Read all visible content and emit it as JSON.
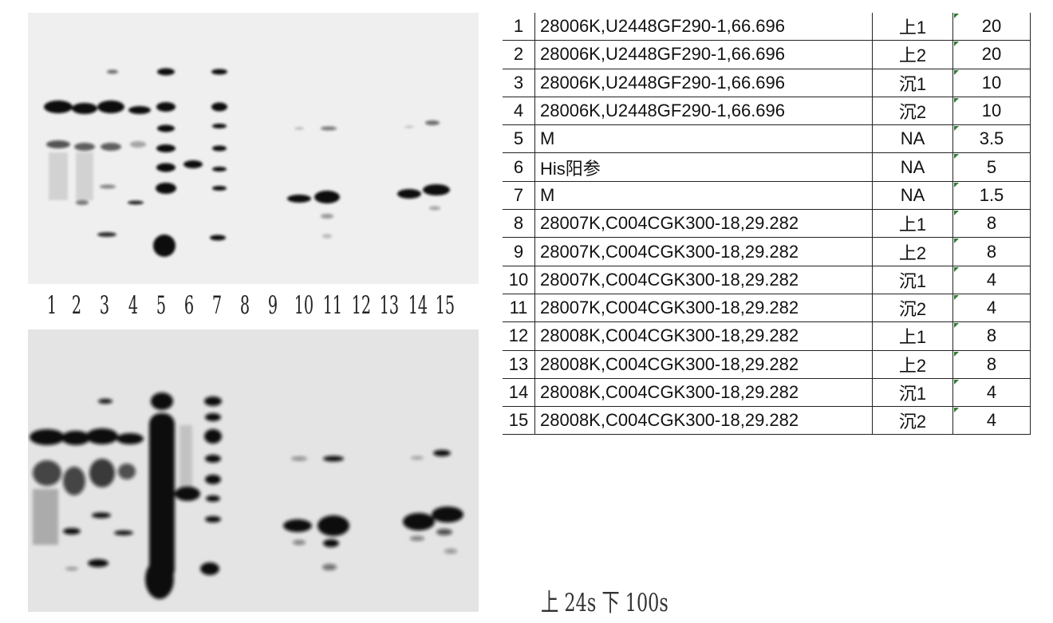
{
  "lane_numbers": [
    "1",
    "2",
    "3",
    "4",
    "5",
    "6",
    "7",
    "8",
    "9",
    "10",
    "11",
    "12",
    "13",
    "14",
    "15"
  ],
  "lane_table": [
    {
      "lane": "1",
      "sample": "28006K,U2448GF290-1,66.696",
      "fraction": "上1",
      "load": "20"
    },
    {
      "lane": "2",
      "sample": "28006K,U2448GF290-1,66.696",
      "fraction": "上2",
      "load": "20"
    },
    {
      "lane": "3",
      "sample": "28006K,U2448GF290-1,66.696",
      "fraction": "沉1",
      "load": "10"
    },
    {
      "lane": "4",
      "sample": "28006K,U2448GF290-1,66.696",
      "fraction": "沉2",
      "load": "10"
    },
    {
      "lane": "5",
      "sample": "M",
      "fraction": "NA",
      "load": "3.5"
    },
    {
      "lane": "6",
      "sample": "His阳参",
      "fraction": "NA",
      "load": "5"
    },
    {
      "lane": "7",
      "sample": "M",
      "fraction": "NA",
      "load": "1.5"
    },
    {
      "lane": "8",
      "sample": "28007K,C004CGK300-18,29.282",
      "fraction": "上1",
      "load": "8"
    },
    {
      "lane": "9",
      "sample": "28007K,C004CGK300-18,29.282",
      "fraction": "上2",
      "load": "8"
    },
    {
      "lane": "10",
      "sample": "28007K,C004CGK300-18,29.282",
      "fraction": "沉1",
      "load": "4"
    },
    {
      "lane": "11",
      "sample": "28007K,C004CGK300-18,29.282",
      "fraction": "沉2",
      "load": "4"
    },
    {
      "lane": "12",
      "sample": "28008K,C004CGK300-18,29.282",
      "fraction": "上1",
      "load": "8"
    },
    {
      "lane": "13",
      "sample": "28008K,C004CGK300-18,29.282",
      "fraction": "上2",
      "load": "8"
    },
    {
      "lane": "14",
      "sample": "28008K,C004CGK300-18,29.282",
      "fraction": "沉1",
      "load": "4"
    },
    {
      "lane": "15",
      "sample": "28008K,C004CGK300-18,29.282",
      "fraction": "沉2",
      "load": "4"
    }
  ],
  "exposure_note": "上 24s 下 100s",
  "colors": {
    "band": "#111111",
    "membrane_top": "#efefef",
    "membrane_bottom": "#e4e4e4",
    "cell_marker": "#2e7d32"
  }
}
